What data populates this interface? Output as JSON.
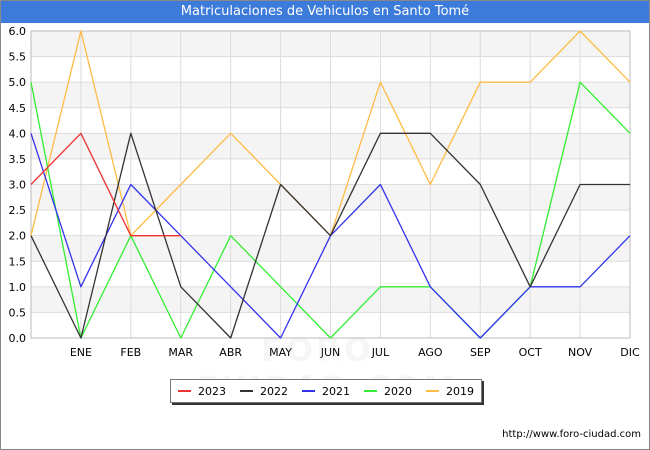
{
  "chart_data": {
    "type": "line",
    "title": "Matriculaciones de Vehiculos en Santo Tomé",
    "categories": [
      "",
      "ENE",
      "FEB",
      "MAR",
      "ABR",
      "MAY",
      "JUN",
      "JUL",
      "AGO",
      "SEP",
      "OCT",
      "NOV",
      "DIC"
    ],
    "yticks": [
      "0.0",
      "0.5",
      "1.0",
      "1.5",
      "2.0",
      "2.5",
      "3.0",
      "3.5",
      "4.0",
      "4.5",
      "5.0",
      "5.5",
      "6.0"
    ],
    "ylim": [
      0,
      6
    ],
    "grid": true,
    "legend_position": "bottom",
    "series": [
      {
        "name": "2023",
        "color": "#ee3333",
        "values": [
          3,
          4,
          2,
          2,
          null,
          null,
          null,
          null,
          null,
          null,
          null,
          null,
          null
        ]
      },
      {
        "name": "2022",
        "color": "#333333",
        "values": [
          2,
          0,
          4,
          1,
          0,
          3,
          2,
          4,
          4,
          3,
          1,
          3,
          3
        ]
      },
      {
        "name": "2021",
        "color": "#3333ee",
        "values": [
          4,
          1,
          3,
          2,
          1,
          0,
          2,
          3,
          1,
          0,
          1,
          1,
          2
        ]
      },
      {
        "name": "2020",
        "color": "#33ee33",
        "values": [
          5,
          0,
          2,
          0,
          2,
          1,
          0,
          1,
          1,
          0,
          1,
          5,
          4
        ]
      },
      {
        "name": "2019",
        "color": "#ffbb44",
        "values": [
          2,
          6,
          2,
          3,
          4,
          3,
          2,
          5,
          3,
          5,
          5,
          6,
          5
        ]
      }
    ]
  },
  "source": "http://www.foro-ciudad.com",
  "watermark": "FORO-CIUDAD.COM"
}
